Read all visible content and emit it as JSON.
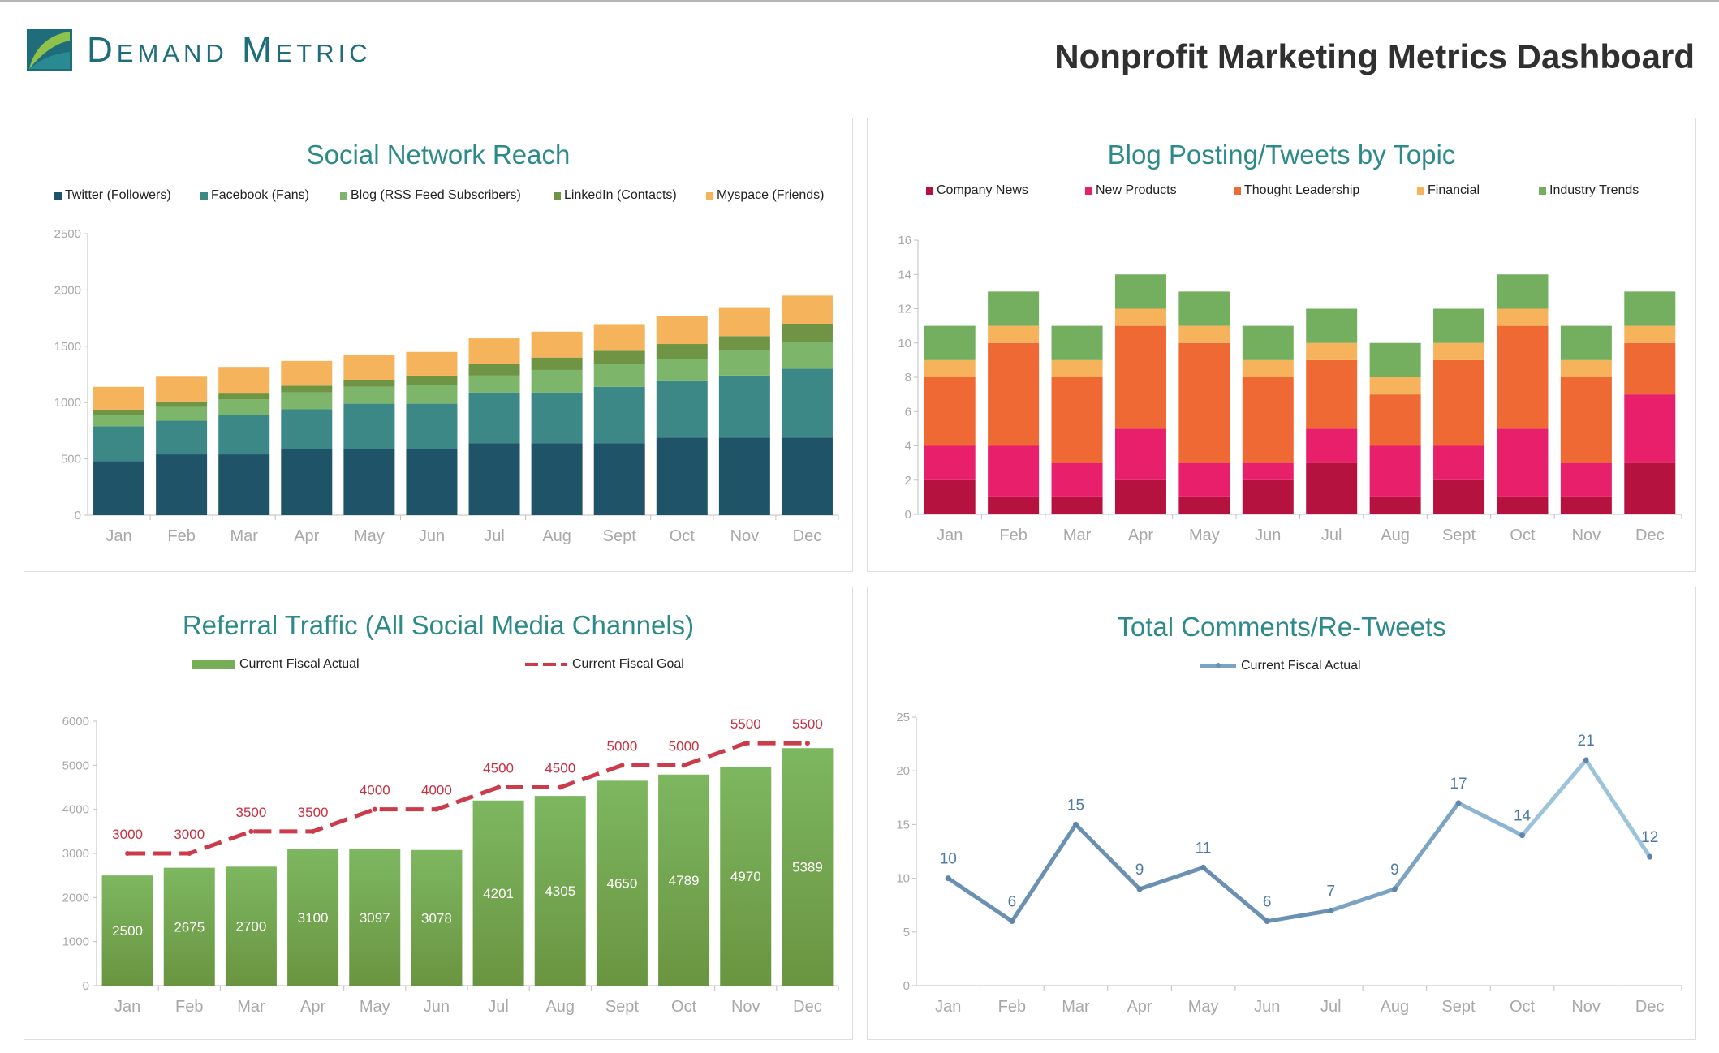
{
  "header": {
    "brand": "Demand Metric",
    "title": "Nonprofit Marketing Metrics Dashboard"
  },
  "colors": {
    "brand_teal": "#1f6c7a",
    "title_teal": "#2e8a8a"
  },
  "chart_data": [
    {
      "id": "social_reach",
      "type": "bar",
      "stacked": true,
      "title": "Social Network Reach",
      "categories": [
        "Jan",
        "Feb",
        "Mar",
        "Apr",
        "May",
        "Jun",
        "Jul",
        "Aug",
        "Sept",
        "Oct",
        "Nov",
        "Dec"
      ],
      "ylim": [
        0,
        2500
      ],
      "yticks": [
        0,
        500,
        1000,
        1500,
        2000,
        2500
      ],
      "legend_position": "top",
      "grid": false,
      "series": [
        {
          "name": "Twitter (Followers)",
          "color": "#1f5468",
          "values": [
            480,
            540,
            540,
            590,
            590,
            590,
            640,
            640,
            640,
            690,
            690,
            690
          ]
        },
        {
          "name": "Facebook (Fans)",
          "color": "#3b8886",
          "values": [
            310,
            300,
            350,
            350,
            400,
            400,
            450,
            450,
            500,
            500,
            550,
            610
          ]
        },
        {
          "name": "Blog (RSS Feed Subscribers)",
          "color": "#7db56a",
          "values": [
            100,
            120,
            140,
            150,
            150,
            170,
            150,
            200,
            200,
            200,
            220,
            240
          ]
        },
        {
          "name": "LinkedIn (Contacts)",
          "color": "#6e9444",
          "values": [
            40,
            50,
            50,
            60,
            60,
            80,
            100,
            110,
            120,
            130,
            130,
            160
          ]
        },
        {
          "name": "Myspace (Friends)",
          "color": "#f5b45c",
          "values": [
            210,
            220,
            230,
            220,
            220,
            210,
            230,
            230,
            230,
            250,
            250,
            250
          ]
        }
      ]
    },
    {
      "id": "blog_topic",
      "type": "bar",
      "stacked": true,
      "title": "Blog Posting/Tweets by Topic",
      "categories": [
        "Jan",
        "Feb",
        "Mar",
        "Apr",
        "May",
        "Jun",
        "Jul",
        "Aug",
        "Sept",
        "Oct",
        "Nov",
        "Dec"
      ],
      "ylim": [
        0,
        16
      ],
      "yticks": [
        0,
        2,
        4,
        6,
        8,
        10,
        12,
        14,
        16
      ],
      "legend_position": "top",
      "grid": false,
      "series": [
        {
          "name": "Company News",
          "color": "#b5123f",
          "values": [
            2,
            1,
            1,
            2,
            1,
            2,
            3,
            1,
            2,
            1,
            1,
            3
          ]
        },
        {
          "name": "New Products",
          "color": "#e8206b",
          "values": [
            2,
            3,
            2,
            3,
            2,
            1,
            2,
            3,
            2,
            4,
            2,
            4
          ]
        },
        {
          "name": "Thought Leadership",
          "color": "#ee6934",
          "values": [
            4,
            6,
            5,
            6,
            7,
            5,
            4,
            3,
            5,
            6,
            5,
            3
          ]
        },
        {
          "name": "Financial",
          "color": "#f6b35c",
          "values": [
            1,
            1,
            1,
            1,
            1,
            1,
            1,
            1,
            1,
            1,
            1,
            1
          ]
        },
        {
          "name": "Industry Trends",
          "color": "#74ae5f",
          "values": [
            2,
            2,
            2,
            2,
            2,
            2,
            2,
            2,
            2,
            2,
            2,
            2
          ]
        }
      ]
    },
    {
      "id": "referral_traffic",
      "type": "bar",
      "title": "Referral Traffic (All Social Media Channels)",
      "categories": [
        "Jan",
        "Feb",
        "Mar",
        "Apr",
        "May",
        "Jun",
        "Jul",
        "Aug",
        "Sept",
        "Oct",
        "Nov",
        "Dec"
      ],
      "ylim": [
        0,
        6000
      ],
      "yticks": [
        0,
        1000,
        2000,
        3000,
        4000,
        5000,
        6000
      ],
      "legend_position": "top",
      "grid": false,
      "series": [
        {
          "name": "Current Fiscal Actual",
          "type": "bar",
          "color": "#78ad58",
          "values": [
            2500,
            2675,
            2700,
            3100,
            3097,
            3078,
            4201,
            4305,
            4650,
            4789,
            4970,
            5389
          ]
        },
        {
          "name": "Current Fiscal Goal",
          "type": "line",
          "style": "dashed",
          "color": "#cc3b4a",
          "values": [
            3000,
            3000,
            3500,
            3500,
            4000,
            4000,
            4500,
            4500,
            5000,
            5000,
            5500,
            5500
          ]
        }
      ]
    },
    {
      "id": "comments",
      "type": "line",
      "title": "Total Comments/Re-Tweets",
      "categories": [
        "Jan",
        "Feb",
        "Mar",
        "Apr",
        "May",
        "Jun",
        "Jul",
        "Aug",
        "Sept",
        "Oct",
        "Nov",
        "Dec"
      ],
      "ylim": [
        0,
        25
      ],
      "yticks": [
        0,
        5,
        10,
        15,
        20,
        25
      ],
      "legend_position": "top",
      "grid": false,
      "series": [
        {
          "name": "Current Fiscal Actual",
          "color": "#6a90b3",
          "values": [
            10,
            6,
            15,
            9,
            11,
            6,
            7,
            9,
            17,
            14,
            21,
            12
          ]
        }
      ]
    }
  ]
}
